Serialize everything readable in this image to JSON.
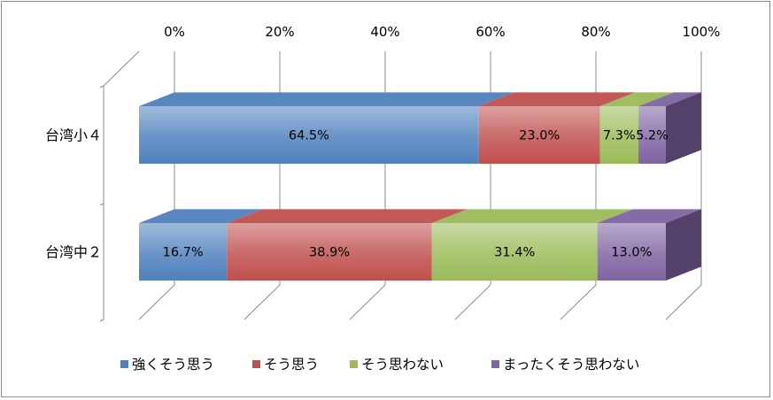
{
  "chart_data": {
    "type": "bar",
    "orientation": "horizontal",
    "stacked": "percent",
    "categories": [
      "台湾小４",
      "台湾中２"
    ],
    "series": [
      {
        "name": "強くそう思う",
        "values": [
          64.5,
          16.7
        ],
        "labels": [
          "64.5%",
          "16.7%"
        ],
        "color": "#4f81bd"
      },
      {
        "name": "そう思う",
        "values": [
          23.0,
          38.9
        ],
        "labels": [
          "23.0%",
          "38.9%"
        ],
        "color": "#c0504d"
      },
      {
        "name": "そう思わない",
        "values": [
          7.3,
          31.4
        ],
        "labels": [
          "7.3%",
          "31.4%"
        ],
        "color": "#9bbb59"
      },
      {
        "name": "まったくそう思わない",
        "values": [
          5.2,
          13.0
        ],
        "labels": [
          "5.2%",
          "13.0%"
        ],
        "color": "#8064a2"
      }
    ],
    "xlim": [
      0,
      100
    ],
    "ticks": [
      "0%",
      "20%",
      "40%",
      "60%",
      "80%",
      "100%"
    ],
    "grid": true,
    "legend": "bottom",
    "style": "3d"
  }
}
